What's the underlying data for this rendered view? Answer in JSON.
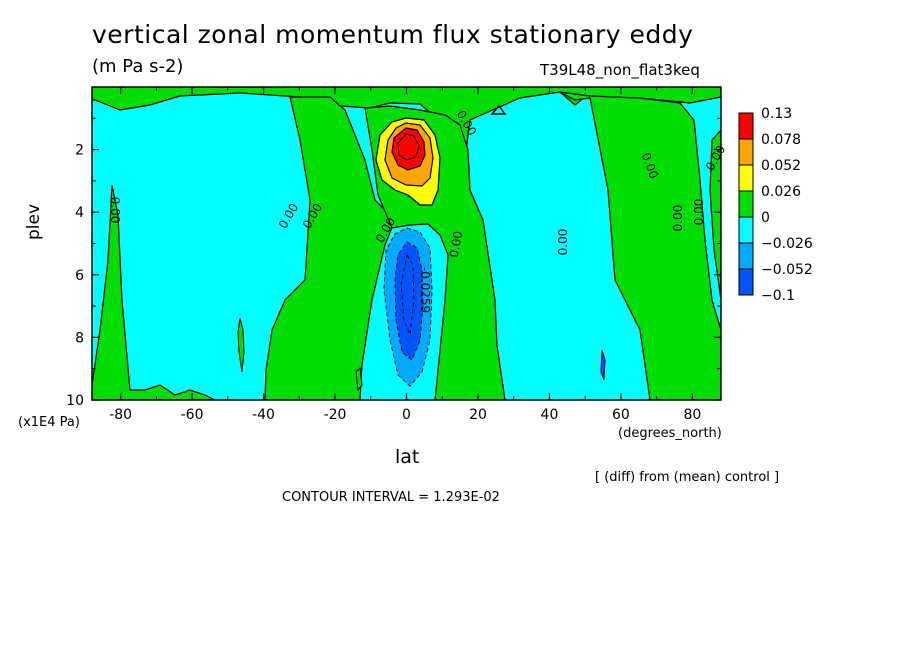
{
  "header": {
    "title": "vertical zonal momentum flux stationary eddy",
    "units": "(m Pa s-2)",
    "run": "T39L48_non_flat3keq"
  },
  "footer": {
    "diff_note": "[ (diff) from (mean) control ]",
    "contour_interval": "CONTOUR INTERVAL = 1.293E-02"
  },
  "chart_data": {
    "type": "heatmap",
    "title": "vertical zonal momentum flux stationary eddy",
    "subtitle": "(m Pa s-2)",
    "xlabel": "lat",
    "xunit": "(degrees_north)",
    "ylabel": "plev",
    "yunit": "(x1E4 Pa)",
    "xlim": [
      -88,
      88
    ],
    "ylim": [
      0,
      10
    ],
    "y_inverted": true,
    "xticks": [
      "-80",
      "-60",
      "-40",
      "-20",
      "0",
      "20",
      "40",
      "60",
      "80"
    ],
    "xtick_values": [
      -80,
      -60,
      -40,
      -20,
      0,
      20,
      40,
      60,
      80
    ],
    "yticks": [
      "2",
      "4",
      "6",
      "8",
      "10"
    ],
    "ytick_values": [
      2,
      4,
      6,
      8,
      10
    ],
    "legend": {
      "placement": "right",
      "labels": [
        "0.13",
        "0.078",
        "0.052",
        "0.026",
        "0",
        "−0.026",
        "−0.052",
        "−0.1"
      ],
      "colors": [
        "#ff0000",
        "#ffa500",
        "#ffff00",
        "#00dd00",
        "#00ffff",
        "#00aaff",
        "#0055ff"
      ]
    },
    "contour_labels": [
      "0.00",
      "0.00",
      "0.00",
      "0.00",
      "0.00",
      "0.00",
      "0.00",
      "0.00",
      "0.00",
      "0.00",
      "0.00",
      "-0.0259"
    ],
    "features": [
      {
        "kind": "positive max",
        "lat": 0,
        "plev": 2.0,
        "value": 0.13
      },
      {
        "kind": "negative min",
        "lat": 0,
        "plev": 6.5,
        "value": -0.1
      }
    ]
  }
}
